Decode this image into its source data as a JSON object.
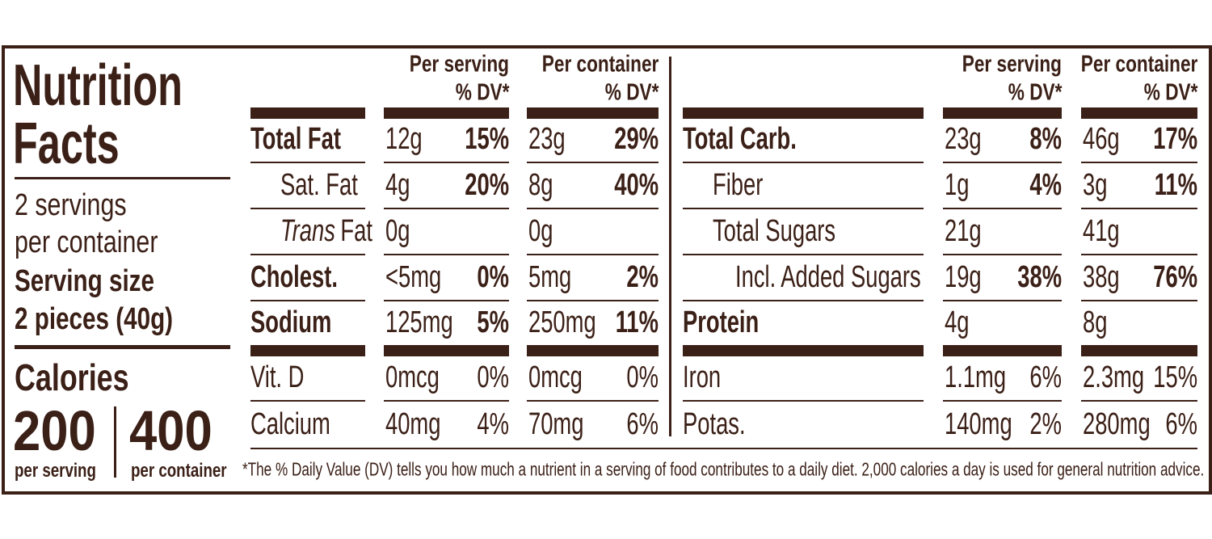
{
  "title_lines": [
    "Nutrition",
    "Facts"
  ],
  "servings_lines": [
    "2 servings",
    "per container"
  ],
  "serving_size_label": "Serving size",
  "serving_size": "2 pieces (40g)",
  "calories_label": "Calories",
  "calories": [
    {
      "amount": "200",
      "label": "per serving"
    },
    {
      "amount": "400",
      "label": "per container"
    }
  ],
  "left_table": {
    "headers": [
      {
        "title": "Per serving",
        "dv": "% DV*"
      },
      {
        "title": "Per container",
        "dv": "% DV*"
      }
    ],
    "rows": [
      {
        "name": "Total Fat",
        "bold": true,
        "indent": 0,
        "per_serving": {
          "amount": "12g",
          "dv": "15%"
        },
        "per_container": {
          "amount": "23g",
          "dv": "29%"
        }
      },
      {
        "name": "Sat. Fat",
        "bold": false,
        "indent": 1,
        "per_serving": {
          "amount": "4g",
          "dv": "20%"
        },
        "per_container": {
          "amount": "8g",
          "dv": "40%"
        }
      },
      {
        "name_italic": "Trans",
        "name": "Fat",
        "bold": false,
        "indent": 1,
        "per_serving": {
          "amount": "0g",
          "dv": null
        },
        "per_container": {
          "amount": "0g",
          "dv": null
        }
      },
      {
        "name": "Cholest.",
        "bold": true,
        "indent": 0,
        "per_serving": {
          "amount": "<5mg",
          "dv": "0%"
        },
        "per_container": {
          "amount": "5mg",
          "dv": "2%"
        }
      },
      {
        "name": "Sodium",
        "bold": true,
        "indent": 0,
        "per_serving": {
          "amount": "125mg",
          "dv": "5%"
        },
        "per_container": {
          "amount": "250mg",
          "dv": "11%"
        }
      }
    ],
    "vitamins": [
      {
        "name": "Vit. D",
        "bold": false,
        "indent": 0,
        "per_serving": {
          "amount": "0mcg",
          "dv": "0%"
        },
        "per_container": {
          "amount": "0mcg",
          "dv": "0%"
        }
      },
      {
        "name": "Calcium",
        "bold": false,
        "indent": 0,
        "per_serving": {
          "amount": "40mg",
          "dv": "4%"
        },
        "per_container": {
          "amount": "70mg",
          "dv": "6%"
        }
      }
    ]
  },
  "right_table": {
    "headers": [
      {
        "title": "Per serving",
        "dv": "% DV*"
      },
      {
        "title": "Per container",
        "dv": "% DV*"
      }
    ],
    "rows": [
      {
        "name": "Total Carb.",
        "bold": true,
        "indent": 0,
        "per_serving": {
          "amount": "23g",
          "dv": "8%"
        },
        "per_container": {
          "amount": "46g",
          "dv": "17%"
        }
      },
      {
        "name": "Fiber",
        "bold": false,
        "indent": 1,
        "per_serving": {
          "amount": "1g",
          "dv": "4%"
        },
        "per_container": {
          "amount": "3g",
          "dv": "11%"
        }
      },
      {
        "name": "Total Sugars",
        "bold": false,
        "indent": 1,
        "per_serving": {
          "amount": "21g",
          "dv": null
        },
        "per_container": {
          "amount": "41g",
          "dv": null
        }
      },
      {
        "name": "Incl. Added Sugars",
        "bold": false,
        "indent": 2,
        "per_serving": {
          "amount": "19g",
          "dv": "38%"
        },
        "per_container": {
          "amount": "38g",
          "dv": "76%"
        }
      },
      {
        "name": "Protein",
        "bold": true,
        "indent": 0,
        "per_serving": {
          "amount": "4g",
          "dv": null
        },
        "per_container": {
          "amount": "8g",
          "dv": null
        }
      }
    ],
    "vitamins": [
      {
        "name": "Iron",
        "bold": false,
        "indent": 0,
        "per_serving": {
          "amount": "1.1mg",
          "dv": "6%"
        },
        "per_container": {
          "amount": "2.3mg",
          "dv": "15%"
        }
      },
      {
        "name": "Potas.",
        "bold": false,
        "indent": 0,
        "per_serving": {
          "amount": "140mg",
          "dv": "2%"
        },
        "per_container": {
          "amount": "280mg",
          "dv": "6%"
        }
      }
    ]
  },
  "footnote": "*The % Daily Value (DV) tells you how much a nutrient in a serving of food contributes to a daily diet. 2,000 calories a day is used for general nutrition advice."
}
